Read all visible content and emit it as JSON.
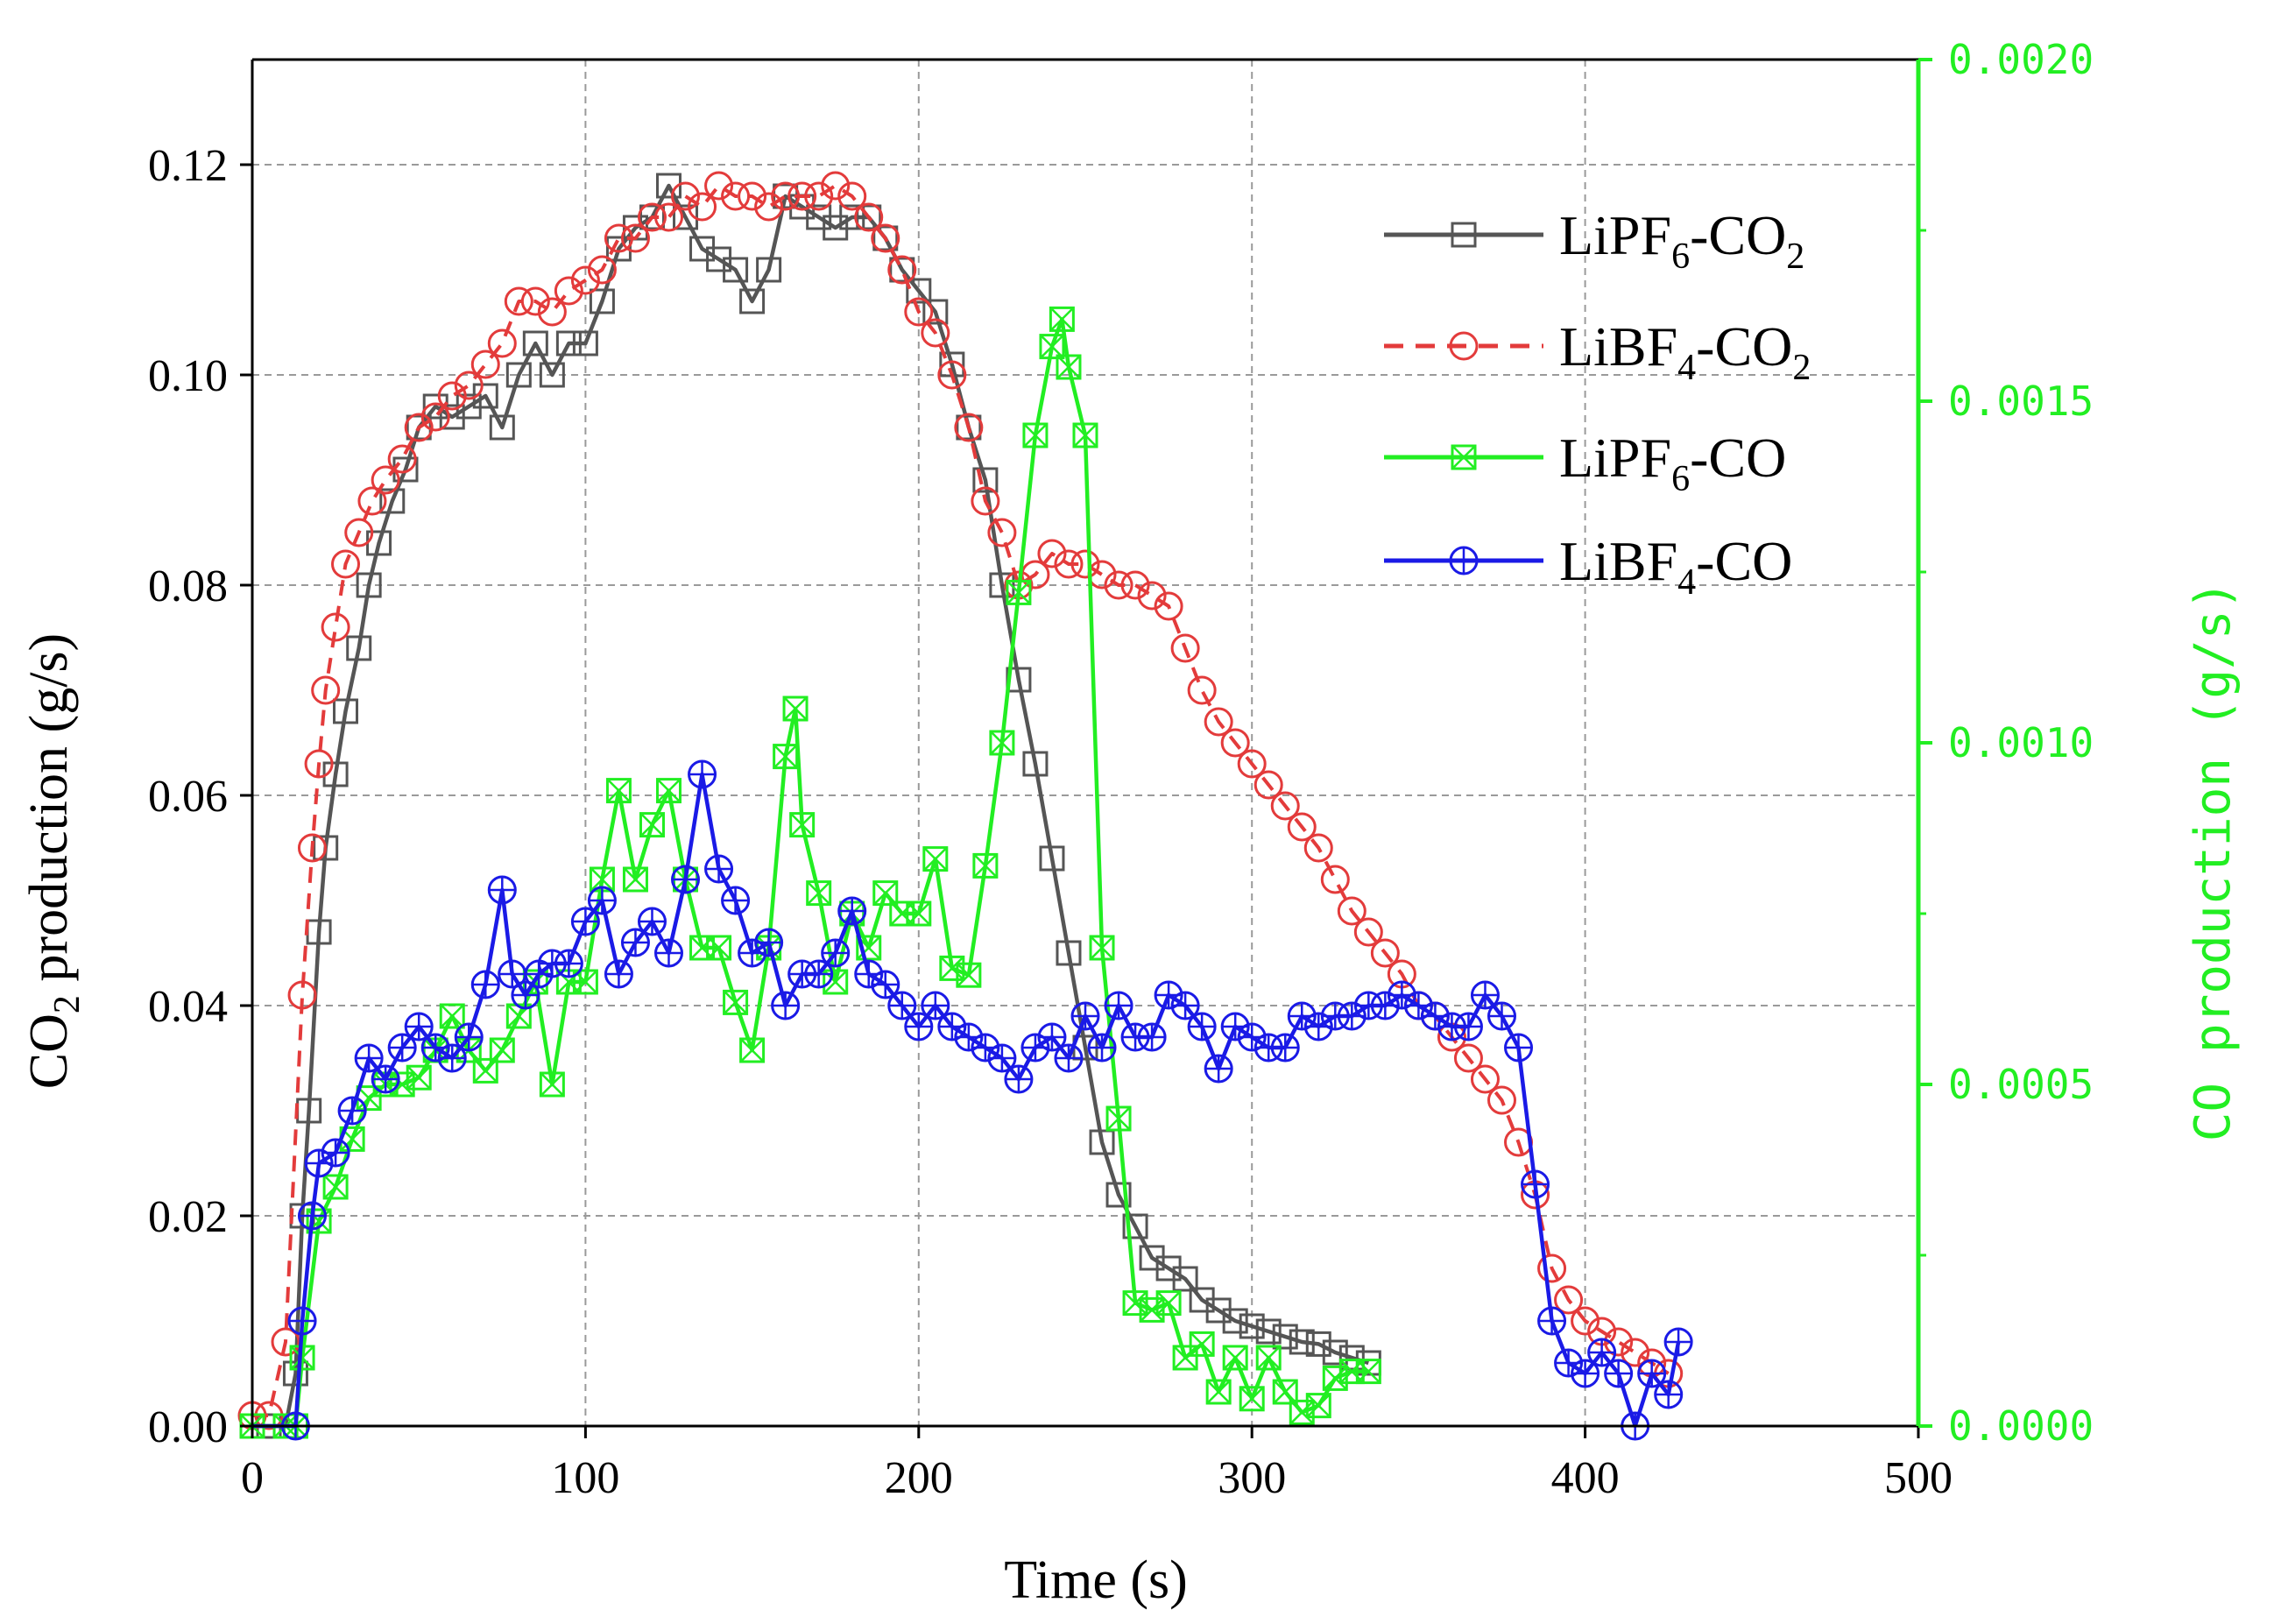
{
  "chart_data": {
    "type": "line",
    "x_axis": {
      "label": "Time (s)",
      "range": [
        0,
        500
      ],
      "ticks": [
        "0",
        "100",
        "200",
        "300",
        "400",
        "500"
      ]
    },
    "y_axis_left": {
      "label_main": "CO",
      "label_sub": "2",
      "label_rest": " production (g/s)",
      "range": [
        0,
        0.13
      ],
      "ticks": [
        "0.00",
        "0.02",
        "0.04",
        "0.06",
        "0.08",
        "0.10",
        "0.12"
      ]
    },
    "y_axis_right": {
      "label": "CO production (g/s)",
      "range": [
        0,
        0.002
      ],
      "ticks": [
        "0.0000",
        "0.0005",
        "0.0010",
        "0.0015",
        "0.0020"
      ],
      "color": "#22ee22"
    },
    "grid": true,
    "legend_position": "top-right",
    "series": [
      {
        "name": "LiPF6-CO2",
        "legend_main": "LiPF",
        "legend_sub1": "6",
        "legend_mid": "-CO",
        "legend_sub2": "2",
        "axis": "left",
        "color": "#555555",
        "dash": "solid",
        "marker": "square",
        "x": [
          0,
          5,
          10,
          13,
          15,
          17,
          20,
          22,
          25,
          28,
          32,
          35,
          38,
          42,
          46,
          50,
          55,
          60,
          65,
          70,
          75,
          80,
          85,
          90,
          95,
          100,
          105,
          110,
          115,
          120,
          125,
          130,
          135,
          140,
          145,
          150,
          155,
          160,
          165,
          170,
          175,
          180,
          185,
          190,
          195,
          200,
          205,
          210,
          215,
          220,
          225,
          230,
          235,
          240,
          245,
          250,
          255,
          260,
          265,
          270,
          275,
          280,
          285,
          290,
          295,
          300,
          305,
          310,
          315,
          320,
          325,
          330,
          335
        ],
        "y": [
          0.0,
          0.0,
          0.0,
          0.005,
          0.02,
          0.03,
          0.047,
          0.055,
          0.062,
          0.068,
          0.074,
          0.08,
          0.084,
          0.088,
          0.091,
          0.095,
          0.097,
          0.096,
          0.097,
          0.098,
          0.095,
          0.1,
          0.103,
          0.1,
          0.103,
          0.103,
          0.107,
          0.112,
          0.114,
          0.115,
          0.118,
          0.115,
          0.112,
          0.111,
          0.11,
          0.107,
          0.11,
          0.117,
          0.116,
          0.115,
          0.114,
          0.115,
          0.115,
          0.113,
          0.11,
          0.108,
          0.106,
          0.101,
          0.095,
          0.09,
          0.08,
          0.071,
          0.063,
          0.054,
          0.045,
          0.036,
          0.027,
          0.022,
          0.019,
          0.016,
          0.015,
          0.014,
          0.012,
          0.011,
          0.01,
          0.0095,
          0.009,
          0.0085,
          0.008,
          0.0078,
          0.007,
          0.0065,
          0.006
        ]
      },
      {
        "name": "LiBF4-CO2",
        "legend_main": "LiBF",
        "legend_sub1": "4",
        "legend_mid": "-CO",
        "legend_sub2": "2",
        "axis": "left",
        "color": "#e33b3b",
        "dash": "dashed",
        "marker": "circle",
        "x": [
          0,
          5,
          10,
          15,
          18,
          20,
          22,
          25,
          28,
          32,
          36,
          40,
          45,
          50,
          55,
          60,
          65,
          70,
          75,
          80,
          85,
          90,
          95,
          100,
          105,
          110,
          115,
          120,
          125,
          130,
          135,
          140,
          145,
          150,
          155,
          160,
          165,
          170,
          175,
          180,
          185,
          190,
          195,
          200,
          205,
          210,
          215,
          220,
          225,
          230,
          235,
          240,
          245,
          250,
          255,
          260,
          265,
          270,
          275,
          280,
          285,
          290,
          295,
          300,
          305,
          310,
          315,
          320,
          325,
          330,
          335,
          340,
          345,
          350,
          355,
          360,
          365,
          370,
          375,
          380,
          385,
          390,
          395,
          400,
          405,
          410,
          415,
          420,
          425
        ],
        "y": [
          0.001,
          0.001,
          0.008,
          0.041,
          0.055,
          0.063,
          0.07,
          0.076,
          0.082,
          0.085,
          0.088,
          0.09,
          0.092,
          0.095,
          0.096,
          0.098,
          0.099,
          0.101,
          0.103,
          0.107,
          0.107,
          0.106,
          0.108,
          0.109,
          0.11,
          0.113,
          0.113,
          0.115,
          0.115,
          0.117,
          0.116,
          0.118,
          0.117,
          0.117,
          0.116,
          0.117,
          0.117,
          0.117,
          0.118,
          0.117,
          0.115,
          0.113,
          0.11,
          0.106,
          0.104,
          0.1,
          0.095,
          0.088,
          0.085,
          0.08,
          0.081,
          0.083,
          0.082,
          0.082,
          0.081,
          0.08,
          0.08,
          0.079,
          0.078,
          0.074,
          0.07,
          0.067,
          0.065,
          0.063,
          0.061,
          0.059,
          0.057,
          0.055,
          0.052,
          0.049,
          0.047,
          0.045,
          0.043,
          0.04,
          0.039,
          0.037,
          0.035,
          0.033,
          0.031,
          0.027,
          0.022,
          0.015,
          0.012,
          0.01,
          0.009,
          0.008,
          0.007,
          0.006,
          0.005
        ]
      },
      {
        "name": "LiPF6-CO",
        "legend_main": "LiPF",
        "legend_sub1": "6",
        "legend_mid": "-CO",
        "legend_sub2": "",
        "axis": "right",
        "color": "#22ee22",
        "dash": "solid",
        "marker": "square-x",
        "x": [
          0,
          10,
          13,
          15,
          20,
          25,
          30,
          35,
          40,
          45,
          50,
          55,
          60,
          65,
          70,
          75,
          80,
          85,
          90,
          95,
          100,
          105,
          110,
          115,
          120,
          125,
          130,
          135,
          140,
          145,
          150,
          155,
          160,
          163,
          165,
          170,
          175,
          180,
          185,
          190,
          195,
          200,
          205,
          210,
          215,
          220,
          225,
          230,
          235,
          240,
          243,
          245,
          250,
          255,
          260,
          265,
          270,
          275,
          280,
          285,
          290,
          295,
          300,
          305,
          310,
          315,
          320,
          325,
          330,
          335
        ],
        "y": [
          0.0,
          0.0,
          0.0,
          0.0001,
          0.0003,
          0.00035,
          0.00042,
          0.00048,
          0.0005,
          0.0005,
          0.00051,
          0.00055,
          0.0006,
          0.00055,
          0.00052,
          0.00055,
          0.0006,
          0.00065,
          0.0005,
          0.00065,
          0.00065,
          0.0008,
          0.00093,
          0.0008,
          0.00088,
          0.00093,
          0.0008,
          0.0007,
          0.0007,
          0.00062,
          0.00055,
          0.0007,
          0.00098,
          0.00105,
          0.00088,
          0.00078,
          0.00065,
          0.00075,
          0.0007,
          0.00078,
          0.00075,
          0.00075,
          0.00083,
          0.00067,
          0.00066,
          0.00082,
          0.001,
          0.00122,
          0.00145,
          0.00158,
          0.00162,
          0.00155,
          0.00145,
          0.0007,
          0.00045,
          0.00018,
          0.00017,
          0.00018,
          0.0001,
          0.00012,
          5e-05,
          0.0001,
          4e-05,
          0.0001,
          5e-05,
          2e-05,
          3e-05,
          7e-05,
          8e-05,
          8e-05
        ]
      },
      {
        "name": "LiBF4-CO",
        "legend_main": "LiBF",
        "legend_sub1": "4",
        "legend_mid": "-CO",
        "legend_sub2": "",
        "axis": "left",
        "color": "#1a1ae6",
        "dash": "solid",
        "marker": "circle-plus",
        "x": [
          0,
          10,
          13,
          15,
          18,
          20,
          25,
          30,
          35,
          40,
          45,
          50,
          55,
          60,
          65,
          70,
          75,
          78,
          82,
          86,
          90,
          95,
          100,
          105,
          110,
          115,
          120,
          125,
          130,
          135,
          140,
          145,
          150,
          155,
          160,
          165,
          170,
          175,
          180,
          185,
          190,
          195,
          200,
          205,
          210,
          215,
          220,
          225,
          230,
          235,
          240,
          245,
          250,
          255,
          260,
          265,
          270,
          275,
          280,
          285,
          290,
          295,
          300,
          305,
          310,
          315,
          320,
          325,
          330,
          335,
          340,
          345,
          350,
          355,
          360,
          365,
          370,
          375,
          380,
          385,
          390,
          395,
          400,
          405,
          410,
          415,
          420,
          425,
          428
        ],
        "y": [
          0.0,
          0.0,
          0.0,
          0.01,
          0.02,
          0.025,
          0.026,
          0.03,
          0.035,
          0.033,
          0.036,
          0.038,
          0.036,
          0.035,
          0.037,
          0.042,
          0.051,
          0.043,
          0.041,
          0.043,
          0.044,
          0.044,
          0.048,
          0.05,
          0.043,
          0.046,
          0.048,
          0.045,
          0.052,
          0.062,
          0.053,
          0.05,
          0.045,
          0.046,
          0.04,
          0.043,
          0.043,
          0.045,
          0.049,
          0.043,
          0.042,
          0.04,
          0.038,
          0.04,
          0.038,
          0.037,
          0.036,
          0.035,
          0.033,
          0.036,
          0.037,
          0.035,
          0.039,
          0.036,
          0.04,
          0.037,
          0.037,
          0.041,
          0.04,
          0.038,
          0.034,
          0.038,
          0.037,
          0.036,
          0.036,
          0.039,
          0.038,
          0.039,
          0.039,
          0.04,
          0.04,
          0.041,
          0.04,
          0.039,
          0.038,
          0.038,
          0.041,
          0.039,
          0.036,
          0.023,
          0.01,
          0.006,
          0.005,
          0.007,
          0.005,
          0.0,
          0.005,
          0.003,
          0.008
        ]
      }
    ]
  }
}
